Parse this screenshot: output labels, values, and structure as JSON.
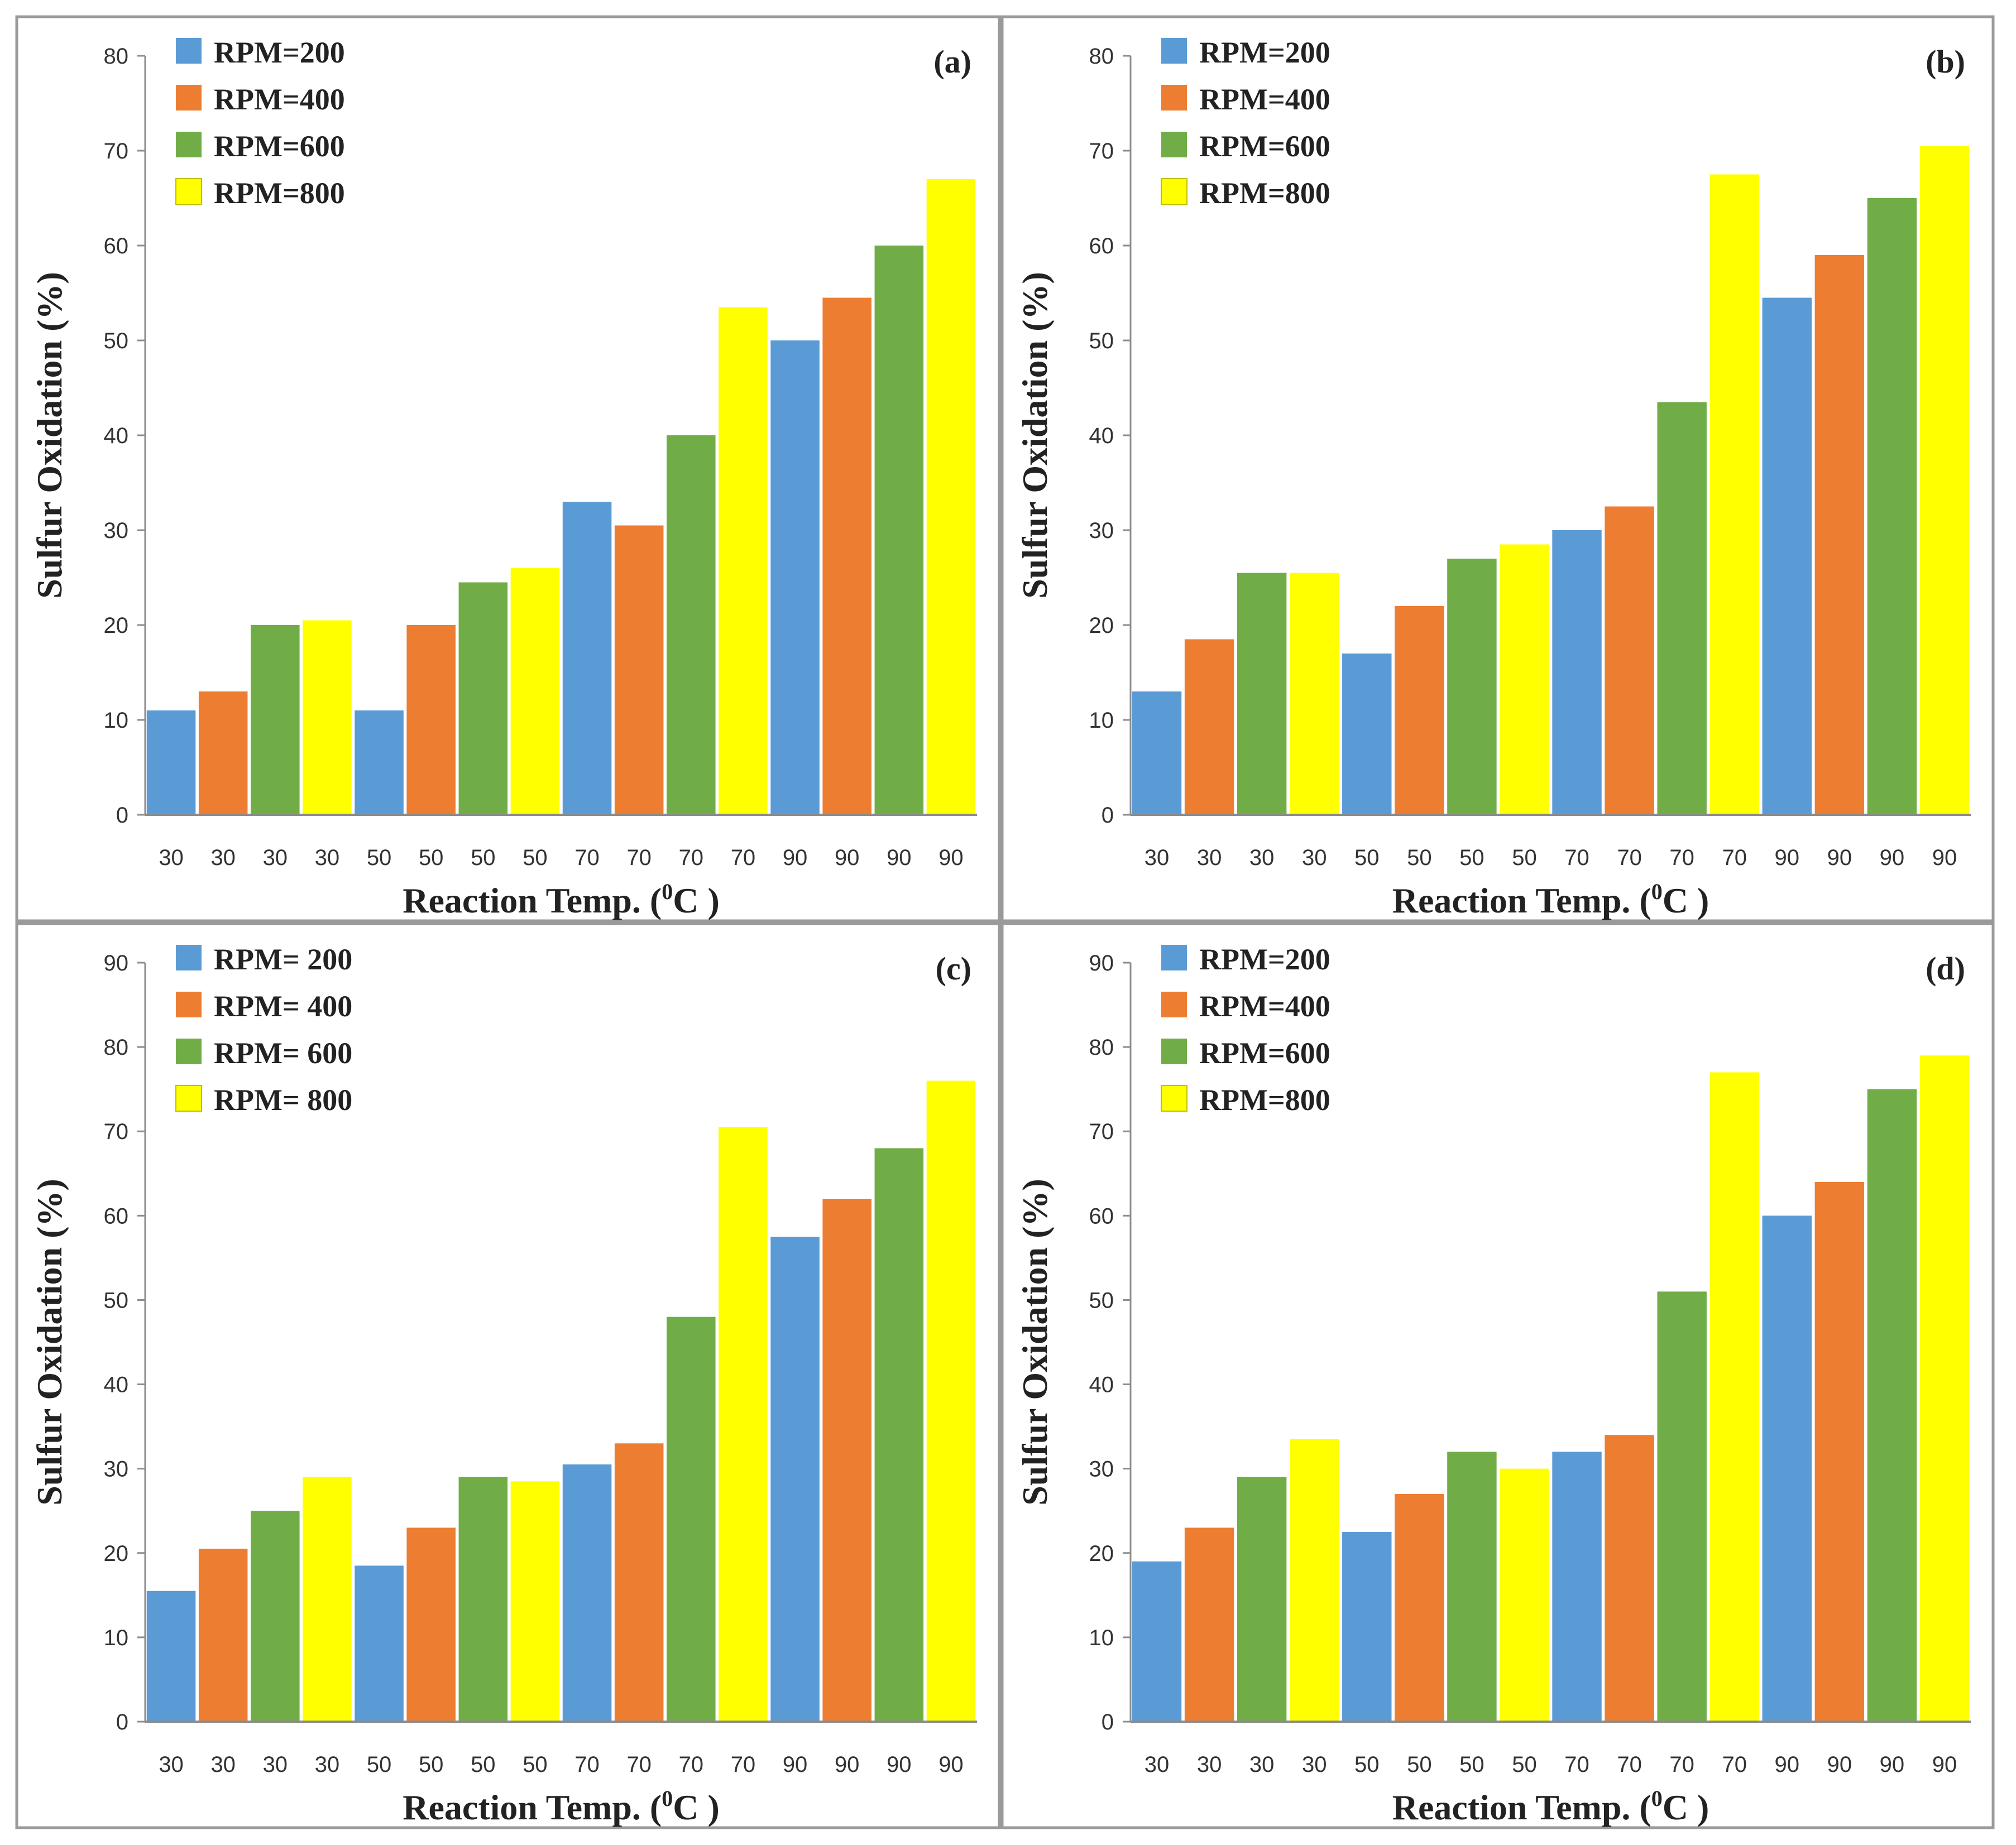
{
  "colors": {
    "rpm200": "#5b9bd5",
    "rpm400": "#ed7d31",
    "rpm600": "#70ad47",
    "rpm800": "#ffff00"
  },
  "chart_data": [
    {
      "type": "bar",
      "panel_label": "(a)",
      "xlabel": "Reaction Temp.",
      "xlabel_unit": "C )",
      "xlabel_sup": "0",
      "ylabel": "Sulfur Oxidation  (%)",
      "ylim": [
        0,
        80
      ],
      "yticks": [
        0,
        10,
        20,
        30,
        40,
        50,
        60,
        70,
        80
      ],
      "categories": [
        "30",
        "30",
        "30",
        "30",
        "50",
        "50",
        "50",
        "50",
        "70",
        "70",
        "70",
        "70",
        "90",
        "90",
        "90",
        "90"
      ],
      "values": [
        11,
        13,
        20,
        20.5,
        11,
        20,
        24.5,
        26,
        33,
        30.5,
        40,
        53.5,
        50,
        54.5,
        60,
        67
      ],
      "series_index": [
        0,
        1,
        2,
        3,
        0,
        1,
        2,
        3,
        0,
        1,
        2,
        3,
        0,
        1,
        2,
        3
      ],
      "legend": [
        "RPM=200",
        "RPM=400",
        "RPM=600",
        "RPM=800"
      ],
      "legend_position": "top-left",
      "grid": false
    },
    {
      "type": "bar",
      "panel_label": "(b)",
      "xlabel": "Reaction Temp.",
      "xlabel_unit": "C )",
      "xlabel_sup": "0",
      "ylabel": "Sulfur Oxidation  (%)",
      "ylim": [
        0,
        80
      ],
      "yticks": [
        0,
        10,
        20,
        30,
        40,
        50,
        60,
        70,
        80
      ],
      "categories": [
        "30",
        "30",
        "30",
        "30",
        "50",
        "50",
        "50",
        "50",
        "70",
        "70",
        "70",
        "70",
        "90",
        "90",
        "90",
        "90"
      ],
      "values": [
        13,
        18.5,
        25.5,
        25.5,
        17,
        22,
        27,
        28.5,
        30,
        32.5,
        43.5,
        67.5,
        54.5,
        59,
        65,
        70.5
      ],
      "series_index": [
        0,
        1,
        2,
        3,
        0,
        1,
        2,
        3,
        0,
        1,
        2,
        3,
        0,
        1,
        2,
        3
      ],
      "legend": [
        "RPM=200",
        "RPM=400",
        "RPM=600",
        "RPM=800"
      ],
      "legend_position": "top-left",
      "grid": false
    },
    {
      "type": "bar",
      "panel_label": "(c)",
      "xlabel": "Reaction Temp.",
      "xlabel_unit": "C )",
      "xlabel_sup": "0",
      "ylabel": "Sulfur Oxidation  (%)",
      "ylim": [
        0,
        90
      ],
      "yticks": [
        0,
        10,
        20,
        30,
        40,
        50,
        60,
        70,
        80,
        90
      ],
      "categories": [
        "30",
        "30",
        "30",
        "30",
        "50",
        "50",
        "50",
        "50",
        "70",
        "70",
        "70",
        "70",
        "90",
        "90",
        "90",
        "90"
      ],
      "values": [
        15.5,
        20.5,
        25,
        29,
        18.5,
        23,
        29,
        28.5,
        30.5,
        33,
        48,
        70.5,
        57.5,
        62,
        68,
        76
      ],
      "series_index": [
        0,
        1,
        2,
        3,
        0,
        1,
        2,
        3,
        0,
        1,
        2,
        3,
        0,
        1,
        2,
        3
      ],
      "legend": [
        "RPM= 200",
        "RPM= 400",
        "RPM= 600",
        "RPM= 800"
      ],
      "legend_position": "top-left",
      "grid": false
    },
    {
      "type": "bar",
      "panel_label": "(d)",
      "xlabel": "Reaction Temp.",
      "xlabel_unit": "C )",
      "xlabel_sup": "0",
      "ylabel": "Sulfur Oxidation  (%)",
      "ylim": [
        0,
        90
      ],
      "yticks": [
        0,
        10,
        20,
        30,
        40,
        50,
        60,
        70,
        80,
        90
      ],
      "categories": [
        "30",
        "30",
        "30",
        "30",
        "50",
        "50",
        "50",
        "50",
        "70",
        "70",
        "70",
        "70",
        "90",
        "90",
        "90",
        "90"
      ],
      "values": [
        19,
        23,
        29,
        33.5,
        22.5,
        27,
        32,
        30,
        32,
        34,
        51,
        77,
        60,
        64,
        75,
        79
      ],
      "series_index": [
        0,
        1,
        2,
        3,
        0,
        1,
        2,
        3,
        0,
        1,
        2,
        3,
        0,
        1,
        2,
        3
      ],
      "legend": [
        "RPM=200",
        "RPM=400",
        "RPM=600",
        "RPM=800"
      ],
      "legend_position": "top-left",
      "grid": false
    }
  ]
}
